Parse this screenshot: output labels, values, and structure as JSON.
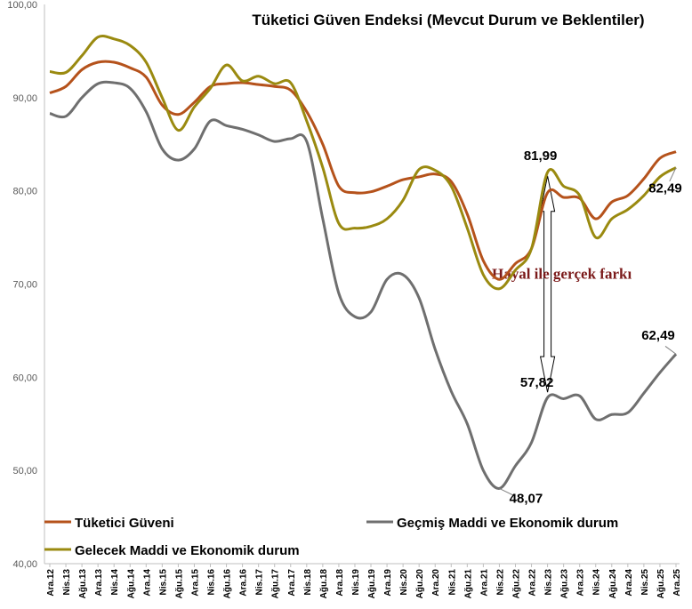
{
  "chart_data": {
    "type": "line",
    "title": "Tüketici Güven Endeksi (Mevcut Durum ve Beklentiler)",
    "xlabel": "",
    "ylabel": "",
    "ylim": [
      40,
      100
    ],
    "yticks": [
      "40,00",
      "50,00",
      "60,00",
      "70,00",
      "80,00",
      "90,00",
      "100,00"
    ],
    "ytick_values": [
      40,
      50,
      60,
      70,
      80,
      90,
      100
    ],
    "categories": [
      "Ara.12",
      "Nis.13",
      "Ağu.13",
      "Ara.13",
      "Nis.14",
      "Ağu.14",
      "Ara.14",
      "Nis.15",
      "Ağu.15",
      "Ara.15",
      "Nis.16",
      "Ağu.16",
      "Ara.16",
      "Nis.17",
      "Ağu.17",
      "Ara.17",
      "Nis.18",
      "Ağu.18",
      "Ara.18",
      "Nis.19",
      "Ağu.19",
      "Ara.19",
      "Nis.20",
      "Ağu.20",
      "Ara.20",
      "Nis.21",
      "Ağu.21",
      "Ara.21",
      "Nis.22",
      "Ağu.22",
      "Ara.22",
      "Nis.23",
      "Ağu.23",
      "Ara.23",
      "Nis.24",
      "Ağu.24",
      "Ara.24",
      "Nis.25",
      "Ağu.25",
      "Ara.25"
    ],
    "series": [
      {
        "name": "Tüketici Güveni",
        "color": "#b5521b",
        "values": [
          90.5,
          91.2,
          93.0,
          93.8,
          93.8,
          93.2,
          92.2,
          89.2,
          88.2,
          89.5,
          91.2,
          91.5,
          91.6,
          91.4,
          91.2,
          90.8,
          88.5,
          85.0,
          80.5,
          79.8,
          79.9,
          80.5,
          81.2,
          81.5,
          81.8,
          81.0,
          77.5,
          72.5,
          70.5,
          72.2,
          73.8,
          79.8,
          79.3,
          79.2,
          77.0,
          78.8,
          79.5,
          81.3,
          83.5,
          84.2
        ]
      },
      {
        "name": "Geçmiş Maddi  ve Ekonomik durum",
        "color": "#6f6f6f",
        "values": [
          88.3,
          88.0,
          90.0,
          91.5,
          91.6,
          91.0,
          88.5,
          84.5,
          83.3,
          84.5,
          87.5,
          87.0,
          86.6,
          86.0,
          85.3,
          85.6,
          85.3,
          77.0,
          69.0,
          66.5,
          67.0,
          70.5,
          71.0,
          68.5,
          63.0,
          58.5,
          55.0,
          50.0,
          48.07,
          50.5,
          53.0,
          57.82,
          57.7,
          58.0,
          55.5,
          56.0,
          56.2,
          58.3,
          60.5,
          62.49
        ]
      },
      {
        "name": "Gelecek Maddi  ve Ekonomik durum",
        "color": "#9a8a10",
        "values": [
          92.8,
          92.7,
          94.5,
          96.5,
          96.3,
          95.6,
          93.8,
          90.0,
          86.5,
          89.0,
          91.0,
          93.5,
          91.8,
          92.3,
          91.5,
          91.6,
          87.5,
          82.5,
          76.5,
          76.0,
          76.2,
          77.0,
          79.0,
          82.3,
          82.2,
          80.5,
          76.0,
          71.0,
          69.5,
          71.5,
          73.8,
          81.99,
          80.5,
          79.5,
          75.0,
          77.0,
          78.0,
          79.5,
          81.5,
          82.49
        ]
      }
    ],
    "data_labels": [
      {
        "text": "81,99",
        "series": 2,
        "index": 31
      },
      {
        "text": "82,49",
        "series": 2,
        "index": 39
      },
      {
        "text": "57,82",
        "series": 1,
        "index": 31
      },
      {
        "text": "48,07",
        "series": 1,
        "index": 28
      },
      {
        "text": "62,49",
        "series": 1,
        "index": 39
      }
    ],
    "annotation": {
      "text": "Hayal ile gerçek farkı",
      "from_value": 81.99,
      "to_value": 57.82,
      "index": 31
    }
  }
}
